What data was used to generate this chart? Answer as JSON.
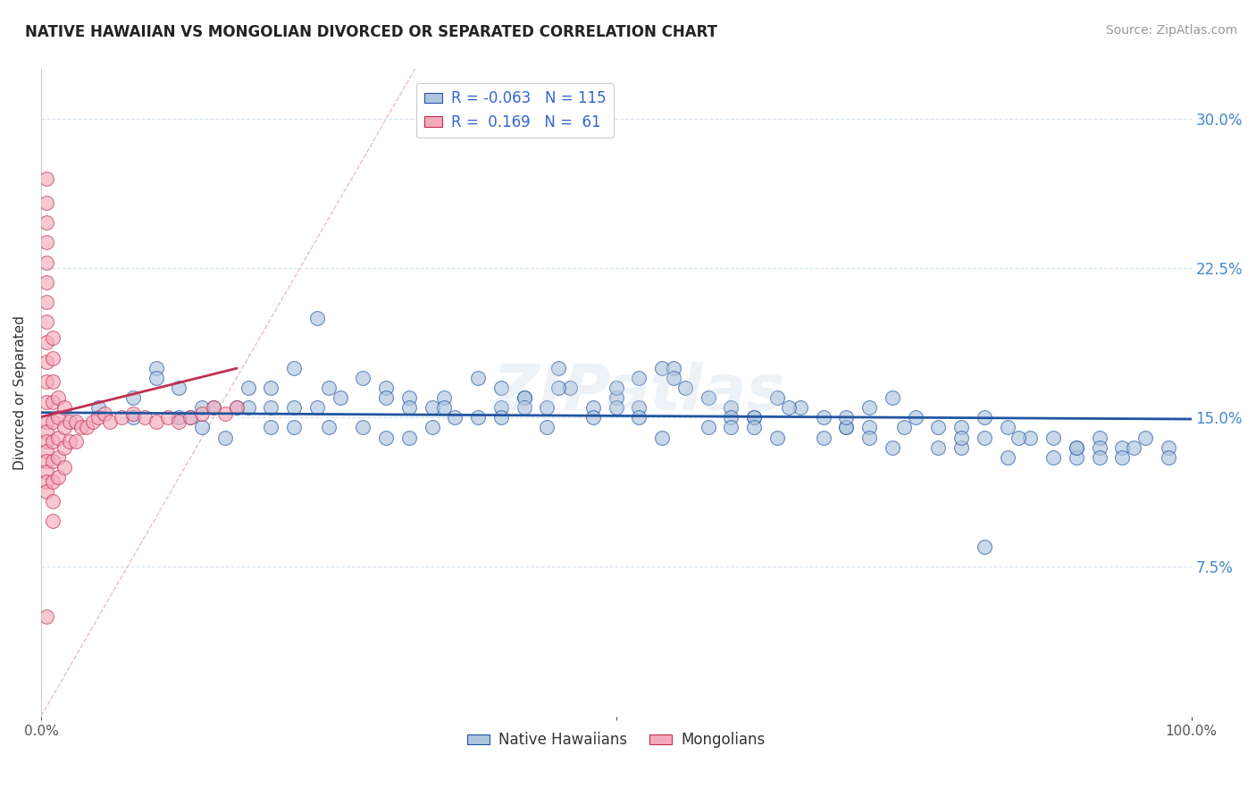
{
  "title": "NATIVE HAWAIIAN VS MONGOLIAN DIVORCED OR SEPARATED CORRELATION CHART",
  "source": "Source: ZipAtlas.com",
  "ylabel": "Divorced or Separated",
  "xmin": 0.0,
  "xmax": 1.0,
  "ymin": 0.0,
  "ymax": 0.325,
  "yticks": [
    0.075,
    0.15,
    0.225,
    0.3
  ],
  "ytick_labels": [
    "7.5%",
    "15.0%",
    "22.5%",
    "30.0%"
  ],
  "legend_r_blue": "-0.063",
  "legend_n_blue": "115",
  "legend_r_pink": "0.169",
  "legend_n_pink": "61",
  "blue_color": "#adc6e0",
  "pink_color": "#f5aabc",
  "line_blue_color": "#2255a0",
  "line_pink_color": "#c03050",
  "diagonal_color": "#e0b0bc",
  "blue_scatter_x": [
    0.05,
    0.08,
    0.1,
    0.12,
    0.14,
    0.16,
    0.18,
    0.2,
    0.22,
    0.24,
    0.26,
    0.28,
    0.3,
    0.32,
    0.34,
    0.36,
    0.38,
    0.4,
    0.42,
    0.44,
    0.46,
    0.48,
    0.5,
    0.52,
    0.54,
    0.56,
    0.58,
    0.6,
    0.62,
    0.64,
    0.66,
    0.68,
    0.7,
    0.72,
    0.74,
    0.76,
    0.78,
    0.8,
    0.82,
    0.84,
    0.86,
    0.88,
    0.9,
    0.92,
    0.94,
    0.96,
    0.98,
    0.15,
    0.25,
    0.35,
    0.1,
    0.2,
    0.3,
    0.4,
    0.5,
    0.6,
    0.7,
    0.8,
    0.9,
    0.55,
    0.45,
    0.35,
    0.25,
    0.17,
    0.13,
    0.22,
    0.32,
    0.42,
    0.52,
    0.62,
    0.72,
    0.82,
    0.92,
    0.08,
    0.18,
    0.28,
    0.38,
    0.48,
    0.58,
    0.68,
    0.78,
    0.88,
    0.98,
    0.14,
    0.24,
    0.34,
    0.44,
    0.54,
    0.64,
    0.74,
    0.84,
    0.94,
    0.5,
    0.6,
    0.7,
    0.8,
    0.9,
    0.4,
    0.3,
    0.2,
    0.45,
    0.55,
    0.65,
    0.75,
    0.85,
    0.95,
    0.12,
    0.22,
    0.32,
    0.42,
    0.52,
    0.62,
    0.72,
    0.82,
    0.92
  ],
  "blue_scatter_y": [
    0.155,
    0.15,
    0.175,
    0.165,
    0.145,
    0.14,
    0.165,
    0.155,
    0.175,
    0.2,
    0.16,
    0.17,
    0.165,
    0.16,
    0.155,
    0.15,
    0.17,
    0.165,
    0.16,
    0.155,
    0.165,
    0.155,
    0.16,
    0.17,
    0.175,
    0.165,
    0.16,
    0.155,
    0.15,
    0.16,
    0.155,
    0.15,
    0.145,
    0.155,
    0.16,
    0.15,
    0.145,
    0.145,
    0.15,
    0.145,
    0.14,
    0.14,
    0.135,
    0.14,
    0.135,
    0.14,
    0.135,
    0.155,
    0.165,
    0.16,
    0.17,
    0.165,
    0.16,
    0.155,
    0.155,
    0.15,
    0.145,
    0.135,
    0.13,
    0.175,
    0.165,
    0.155,
    0.145,
    0.155,
    0.15,
    0.155,
    0.155,
    0.16,
    0.155,
    0.15,
    0.145,
    0.14,
    0.135,
    0.16,
    0.155,
    0.145,
    0.15,
    0.15,
    0.145,
    0.14,
    0.135,
    0.13,
    0.13,
    0.155,
    0.155,
    0.145,
    0.145,
    0.14,
    0.14,
    0.135,
    0.13,
    0.13,
    0.165,
    0.145,
    0.15,
    0.14,
    0.135,
    0.15,
    0.14,
    0.145,
    0.175,
    0.17,
    0.155,
    0.145,
    0.14,
    0.135,
    0.15,
    0.145,
    0.14,
    0.155,
    0.15,
    0.145,
    0.14,
    0.085,
    0.13
  ],
  "pink_scatter_x": [
    0.005,
    0.005,
    0.005,
    0.005,
    0.005,
    0.005,
    0.005,
    0.005,
    0.005,
    0.005,
    0.005,
    0.005,
    0.005,
    0.005,
    0.005,
    0.005,
    0.005,
    0.005,
    0.005,
    0.005,
    0.01,
    0.01,
    0.01,
    0.01,
    0.01,
    0.01,
    0.01,
    0.01,
    0.01,
    0.01,
    0.015,
    0.015,
    0.015,
    0.015,
    0.015,
    0.02,
    0.02,
    0.02,
    0.02,
    0.025,
    0.025,
    0.03,
    0.03,
    0.035,
    0.04,
    0.045,
    0.05,
    0.055,
    0.06,
    0.07,
    0.08,
    0.09,
    0.1,
    0.11,
    0.12,
    0.13,
    0.14,
    0.15,
    0.16,
    0.17,
    0.005
  ],
  "pink_scatter_y": [
    0.27,
    0.258,
    0.248,
    0.238,
    0.228,
    0.218,
    0.208,
    0.198,
    0.188,
    0.178,
    0.168,
    0.158,
    0.148,
    0.143,
    0.138,
    0.133,
    0.128,
    0.123,
    0.118,
    0.113,
    0.19,
    0.18,
    0.168,
    0.158,
    0.148,
    0.138,
    0.128,
    0.118,
    0.108,
    0.098,
    0.16,
    0.15,
    0.14,
    0.13,
    0.12,
    0.155,
    0.145,
    0.135,
    0.125,
    0.148,
    0.138,
    0.148,
    0.138,
    0.145,
    0.145,
    0.148,
    0.15,
    0.152,
    0.148,
    0.15,
    0.152,
    0.15,
    0.148,
    0.15,
    0.148,
    0.15,
    0.152,
    0.155,
    0.152,
    0.155,
    0.05
  ]
}
